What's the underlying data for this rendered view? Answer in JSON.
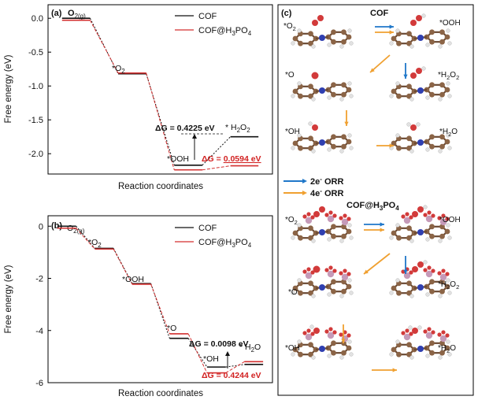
{
  "figure": {
    "panel_a_label": "(a)",
    "panel_b_label": "(b)",
    "panel_c_label": "(c)"
  },
  "colors": {
    "cof": "#111111",
    "cof_h3po4": "#d32f2f",
    "arrow_2e": "#1f77c9",
    "arrow_4e": "#f0a030",
    "carbon": "#8b6446",
    "nitrogen": "#2f3fb0",
    "oxygen": "#d23a3a",
    "hydrogen": "#e2e2e2",
    "phosphorus": "#c59ab8"
  },
  "chart_data": [
    {
      "type": "line",
      "panel": "(a)",
      "xlabel": "Reaction coordinates",
      "ylabel": "Free energy (eV)",
      "ylim": [
        -2.3,
        0.2
      ],
      "yticks": [
        "0.0",
        "-0.5",
        "-1.0",
        "-1.5",
        "-2.0"
      ],
      "ytick_values": [
        0.0,
        -0.5,
        -1.0,
        -1.5,
        -2.0
      ],
      "steps": [
        "O2(g)",
        "*O2",
        "*OOH",
        "*H2O2"
      ],
      "step_labels": [
        "O",
        "*O",
        "*OOH",
        "* H",
        "O"
      ],
      "step_label_subs": [
        "2(g)",
        "2",
        "",
        "2",
        "2"
      ],
      "series": [
        {
          "name": "COF",
          "values": [
            0.0,
            -0.82,
            -2.17,
            -1.75
          ]
        },
        {
          "name": "COF@H3PO4",
          "values": [
            0.0,
            -0.78,
            -2.21,
            -2.15
          ]
        }
      ],
      "legend": {
        "position": "top-right",
        "labels": [
          "COF",
          "COF@H",
          "PO"
        ],
        "subs": [
          "3",
          "4"
        ]
      },
      "annotations": [
        {
          "text": "ΔG = 0.4225 eV",
          "color": "#111111"
        },
        {
          "text": "ΔG = ",
          "value": "0.0594 eV",
          "color": "#d32f2f"
        }
      ]
    },
    {
      "type": "line",
      "panel": "(b)",
      "xlabel": "Reaction coordinates",
      "ylabel": "Free energy (eV)",
      "ylim": [
        -6.0,
        0.4
      ],
      "yticks": [
        "0",
        "-2",
        "-4",
        "-6"
      ],
      "ytick_values": [
        0,
        -2,
        -4,
        -6
      ],
      "steps": [
        "O2(g)",
        "*O2",
        "*OOH",
        "*O",
        "*OH",
        "*H2O"
      ],
      "step_labels": [
        "O",
        "*O",
        "*OOH",
        "*O",
        "*OH",
        "* H",
        "O"
      ],
      "step_label_subs": [
        "2(g)",
        "2",
        "",
        "",
        "",
        "2",
        ""
      ],
      "series": [
        {
          "name": "COF",
          "values": [
            0.0,
            -0.85,
            -2.2,
            -4.3,
            -5.4,
            -5.3
          ]
        },
        {
          "name": "COF@H3PO4",
          "values": [
            0.0,
            -0.8,
            -2.15,
            -4.05,
            -5.55,
            -5.12
          ]
        }
      ],
      "legend": {
        "position": "top-right",
        "labels": [
          "COF",
          "COF@H",
          "PO"
        ],
        "subs": [
          "3",
          "4"
        ]
      },
      "annotations": [
        {
          "text": "ΔG = 0.0098 eV",
          "color": "#111111"
        },
        {
          "text": "ΔG = 0.4244 eV",
          "color": "#d32f2f"
        }
      ]
    }
  ],
  "panel_c": {
    "top_title": "COF",
    "bottom_title": "COF@H",
    "bottom_title_subs": [
      "3",
      "PO",
      "4"
    ],
    "legend_2e": "2e",
    "legend_4e": "4e",
    "legend_suffix": " ORR",
    "legend_sup": "-",
    "species": [
      {
        "pre": "*O",
        "sub": "2",
        "post": ""
      },
      {
        "pre": "*OOH",
        "sub": "",
        "post": ""
      },
      {
        "pre": "*O",
        "sub": "",
        "post": ""
      },
      {
        "pre": "*H",
        "sub": "2",
        "post": "O"
      },
      {
        "pre": "*OH",
        "sub": "",
        "post": ""
      },
      {
        "pre": "*H",
        "sub": "2",
        "post": "O"
      }
    ],
    "h2o2_label": {
      "pre": "*H",
      "sub": "2",
      "mid": "O",
      "sub2": "2"
    }
  }
}
